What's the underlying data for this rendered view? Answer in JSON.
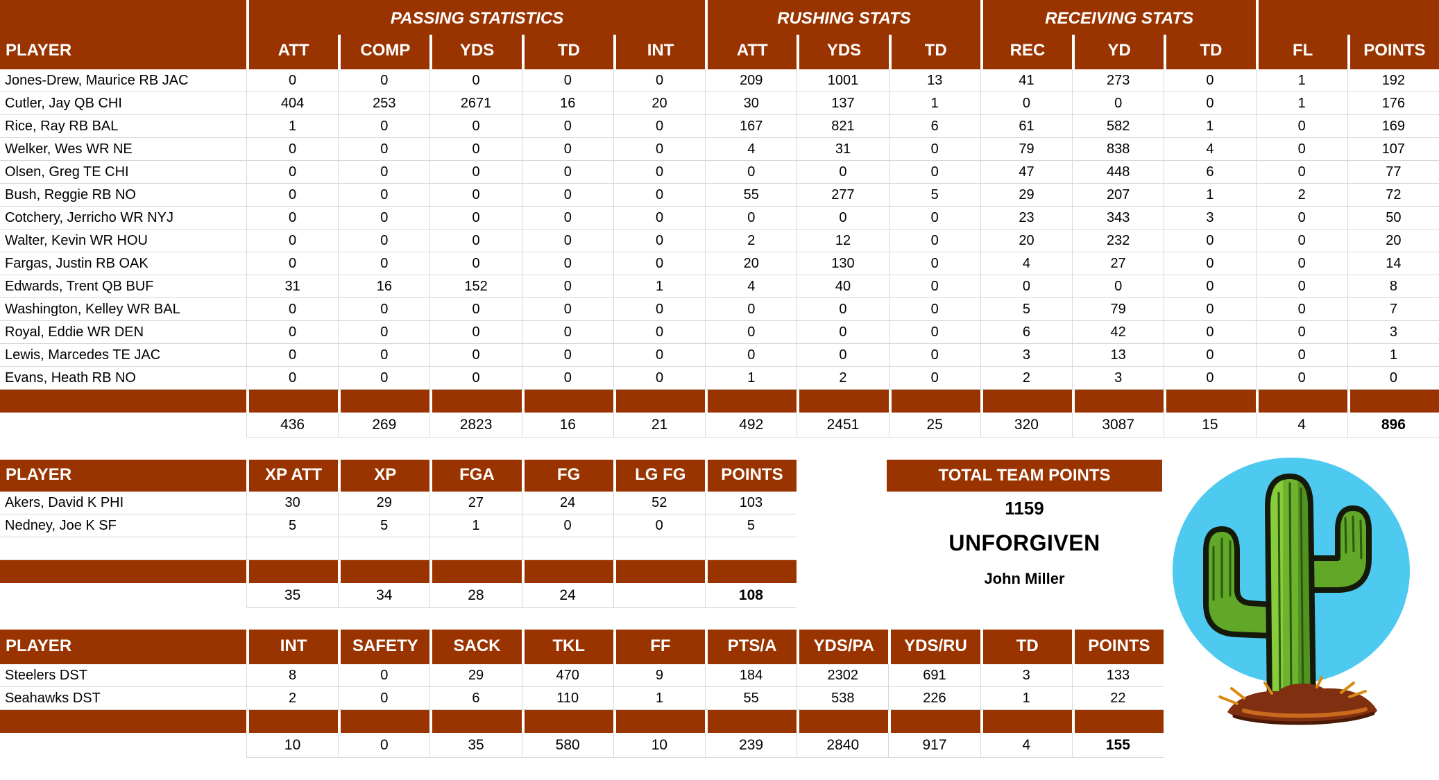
{
  "colors": {
    "header_bg": "#993300",
    "header_text": "#ffffff",
    "grid_line": "#d8d8d8",
    "logo_circle_blue": "#4ec9f0",
    "logo_cactus_green": "#6db32e",
    "logo_dirt_brown": "#802f10"
  },
  "offense_table": {
    "group_headers": [
      {
        "label": "",
        "span": 1
      },
      {
        "label": "PASSING STATISTICS",
        "span": 5
      },
      {
        "label": "RUSHING STATS",
        "span": 3
      },
      {
        "label": "RECEIVING STATS",
        "span": 3
      },
      {
        "label": "",
        "span": 2
      }
    ],
    "columns": [
      "PLAYER",
      "ATT",
      "COMP",
      "YDS",
      "TD",
      "INT",
      "ATT",
      "YDS",
      "TD",
      "REC",
      "YD",
      "TD",
      "FL",
      "POINTS"
    ],
    "rows": [
      [
        "Jones-Drew, Maurice RB JAC",
        "0",
        "0",
        "0",
        "0",
        "0",
        "209",
        "1001",
        "13",
        "41",
        "273",
        "0",
        "1",
        "192"
      ],
      [
        "Cutler, Jay QB CHI",
        "404",
        "253",
        "2671",
        "16",
        "20",
        "30",
        "137",
        "1",
        "0",
        "0",
        "0",
        "1",
        "176"
      ],
      [
        "Rice, Ray RB BAL",
        "1",
        "0",
        "0",
        "0",
        "0",
        "167",
        "821",
        "6",
        "61",
        "582",
        "1",
        "0",
        "169"
      ],
      [
        "Welker, Wes WR NE",
        "0",
        "0",
        "0",
        "0",
        "0",
        "4",
        "31",
        "0",
        "79",
        "838",
        "4",
        "0",
        "107"
      ],
      [
        "Olsen, Greg TE CHI",
        "0",
        "0",
        "0",
        "0",
        "0",
        "0",
        "0",
        "0",
        "47",
        "448",
        "6",
        "0",
        "77"
      ],
      [
        "Bush, Reggie RB NO",
        "0",
        "0",
        "0",
        "0",
        "0",
        "55",
        "277",
        "5",
        "29",
        "207",
        "1",
        "2",
        "72"
      ],
      [
        "Cotchery, Jerricho WR NYJ",
        "0",
        "0",
        "0",
        "0",
        "0",
        "0",
        "0",
        "0",
        "23",
        "343",
        "3",
        "0",
        "50"
      ],
      [
        "Walter, Kevin WR HOU",
        "0",
        "0",
        "0",
        "0",
        "0",
        "2",
        "12",
        "0",
        "20",
        "232",
        "0",
        "0",
        "20"
      ],
      [
        "Fargas, Justin RB OAK",
        "0",
        "0",
        "0",
        "0",
        "0",
        "20",
        "130",
        "0",
        "4",
        "27",
        "0",
        "0",
        "14"
      ],
      [
        "Edwards, Trent QB BUF",
        "31",
        "16",
        "152",
        "0",
        "1",
        "4",
        "40",
        "0",
        "0",
        "0",
        "0",
        "0",
        "8"
      ],
      [
        "Washington, Kelley WR BAL",
        "0",
        "0",
        "0",
        "0",
        "0",
        "0",
        "0",
        "0",
        "5",
        "79",
        "0",
        "0",
        "7"
      ],
      [
        "Royal, Eddie WR DEN",
        "0",
        "0",
        "0",
        "0",
        "0",
        "0",
        "0",
        "0",
        "6",
        "42",
        "0",
        "0",
        "3"
      ],
      [
        "Lewis, Marcedes TE JAC",
        "0",
        "0",
        "0",
        "0",
        "0",
        "0",
        "0",
        "0",
        "3",
        "13",
        "0",
        "0",
        "1"
      ],
      [
        "Evans, Heath RB NO",
        "0",
        "0",
        "0",
        "0",
        "0",
        "1",
        "2",
        "0",
        "2",
        "3",
        "0",
        "0",
        "0"
      ]
    ],
    "totals": [
      "",
      "436",
      "269",
      "2823",
      "16",
      "21",
      "492",
      "2451",
      "25",
      "320",
      "3087",
      "15",
      "4",
      "896"
    ]
  },
  "kicker_table": {
    "columns": [
      "PLAYER",
      "XP ATT",
      "XP",
      "FGA",
      "FG",
      "LG FG",
      "POINTS"
    ],
    "rows": [
      [
        "Akers, David K PHI",
        "30",
        "29",
        "27",
        "24",
        "52",
        "103"
      ],
      [
        "Nedney, Joe K SF",
        "5",
        "5",
        "1",
        "0",
        "0",
        "5"
      ],
      [
        "",
        "",
        "",
        "",
        "",
        "",
        ""
      ]
    ],
    "totals": [
      "",
      "35",
      "34",
      "28",
      "24",
      "",
      "108"
    ]
  },
  "defense_table": {
    "columns": [
      "PLAYER",
      "INT",
      "SAFETY",
      "SACK",
      "TKL",
      "FF",
      "PTS/A",
      "YDS/PA",
      "YDS/RU",
      "TD",
      "POINTS"
    ],
    "rows": [
      [
        "Steelers DST",
        "8",
        "0",
        "29",
        "470",
        "9",
        "184",
        "2302",
        "691",
        "3",
        "133"
      ],
      [
        "Seahawks DST",
        "2",
        "0",
        "6",
        "110",
        "1",
        "55",
        "538",
        "226",
        "1",
        "22"
      ]
    ],
    "totals": [
      "",
      "10",
      "0",
      "35",
      "580",
      "10",
      "239",
      "2840",
      "917",
      "4",
      "155"
    ]
  },
  "team_summary": {
    "header": "TOTAL TEAM POINTS",
    "total_points": "1159",
    "team_name": "UNFORGIVEN",
    "owner": "John Miller"
  },
  "logo": {
    "description": "cactus on blue circle"
  }
}
